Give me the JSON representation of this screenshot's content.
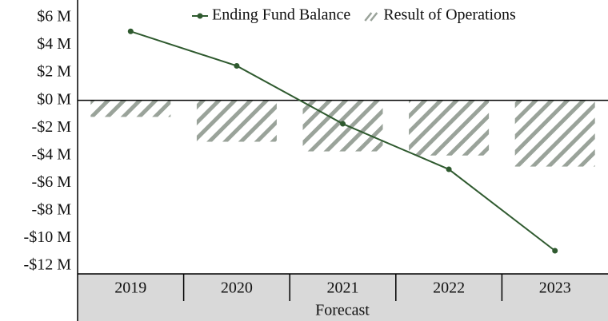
{
  "chart_data": {
    "type": "combo",
    "categories": [
      "2019",
      "2020",
      "2021",
      "2022",
      "2023"
    ],
    "group_label": "Forecast",
    "series": [
      {
        "name": "Ending Fund Balance",
        "type": "line",
        "color": "#2f5a2f",
        "values": [
          5.0,
          2.5,
          -1.7,
          -5.0,
          -10.9
        ]
      },
      {
        "name": "Result of Operations",
        "type": "bar",
        "pattern": "hatch",
        "color": "#9aa39a",
        "values": [
          -1.2,
          -3.0,
          -3.7,
          -4.0,
          -4.8
        ]
      }
    ],
    "ylim": [
      -12,
      6
    ],
    "yticks": [
      {
        "value": 6,
        "label": "$6 M"
      },
      {
        "value": 4,
        "label": "$4 M"
      },
      {
        "value": 2,
        "label": "$2 M"
      },
      {
        "value": 0,
        "label": "$0 M"
      },
      {
        "value": -2,
        "label": "-$2 M"
      },
      {
        "value": -4,
        "label": "-$4 M"
      },
      {
        "value": -6,
        "label": "-$6 M"
      },
      {
        "value": -8,
        "label": "-$8 M"
      },
      {
        "value": -10,
        "label": "-$10 M"
      },
      {
        "value": -12,
        "label": "-$12 M"
      }
    ],
    "grid": false,
    "legend": "top"
  }
}
